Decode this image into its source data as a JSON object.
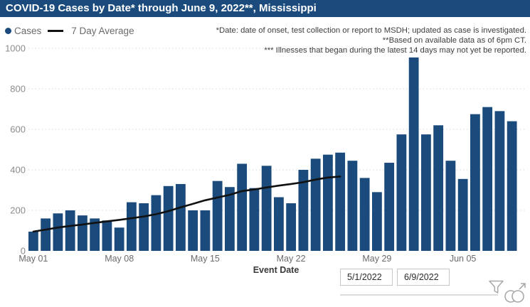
{
  "title_bar": "COVID-19 Cases by Date* through June 9, 2022**, Mississippi",
  "legend": {
    "cases_label": "Cases",
    "avg_label": "7 Day Average"
  },
  "annotations": [
    "*Date: date of onset, test collection or report to MSDH; updated as case is investigated.",
    "**Based on available data as of 6pm CT.",
    "*** Illnesses that began during the latest 14 days may not yet be reported."
  ],
  "chart_data": {
    "type": "bar",
    "title": "COVID-19 Cases by Date* through June 9, 2022**, Mississippi",
    "xlabel": "Event Date",
    "ylabel": "",
    "ylim": [
      0,
      1000
    ],
    "yticks": [
      0,
      200,
      400,
      600,
      800,
      1000
    ],
    "grid": "dotted-horizontal",
    "legend_position": "top-left",
    "xticks": [
      {
        "day_index": 0,
        "label": "May 01"
      },
      {
        "day_index": 7,
        "label": "May 08"
      },
      {
        "day_index": 14,
        "label": "May 15"
      },
      {
        "day_index": 21,
        "label": "May 22"
      },
      {
        "day_index": 28,
        "label": "May 29"
      },
      {
        "day_index": 35,
        "label": "Jun 05"
      }
    ],
    "categories": [
      "May 1",
      "May 2",
      "May 3",
      "May 4",
      "May 5",
      "May 6",
      "May 7",
      "May 8",
      "May 9",
      "May 10",
      "May 11",
      "May 12",
      "May 13",
      "May 14",
      "May 15",
      "May 16",
      "May 17",
      "May 18",
      "May 19",
      "May 20",
      "May 21",
      "May 22",
      "May 23",
      "May 24",
      "May 25",
      "May 26",
      "May 27",
      "May 28",
      "May 29",
      "May 30",
      "May 31",
      "Jun 1",
      "Jun 2",
      "Jun 3",
      "Jun 4",
      "Jun 5",
      "Jun 6",
      "Jun 7",
      "Jun 8",
      "Jun 9"
    ],
    "series": [
      {
        "name": "Cases",
        "type": "bar",
        "values": [
          95,
          160,
          185,
          200,
          175,
          160,
          150,
          115,
          240,
          235,
          275,
          320,
          330,
          200,
          200,
          345,
          315,
          430,
          310,
          420,
          265,
          235,
          400,
          455,
          475,
          485,
          445,
          360,
          290,
          435,
          575,
          955,
          575,
          620,
          445,
          355,
          675,
          710,
          690,
          640
        ]
      },
      {
        "name": "7 Day Average",
        "type": "line",
        "values": [
          95,
          105,
          115,
          123,
          130,
          138,
          146,
          153,
          161,
          170,
          181,
          196,
          215,
          232,
          250,
          263,
          277,
          295,
          303,
          313,
          322,
          330,
          339,
          352,
          362,
          367
        ]
      }
    ]
  },
  "slicer": {
    "start_date": "5/1/2022",
    "end_date": "6/9/2022"
  },
  "icons": {
    "funnel": "filter-funnel-icon",
    "focus": "focus-mode-icon"
  },
  "colors": {
    "navy": "#1B4B7C",
    "bar": "#1B4B7C",
    "avg_line": "#111111",
    "grid": "#D8D8D8",
    "y_axis_text": "#8C8C8C",
    "x_axis_text": "#6B6B6B",
    "annotation_text": "#3D3D3D",
    "icon_gray": "#A8A8A8"
  }
}
